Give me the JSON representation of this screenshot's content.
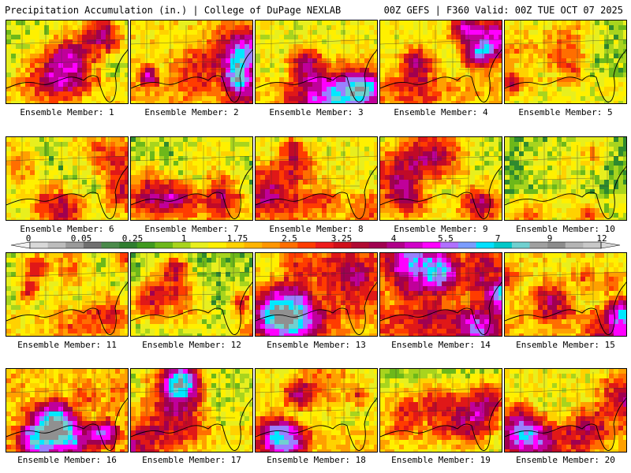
{
  "header": {
    "title_left": "Precipitation Accumulation (in.) | College of DuPage NEXLAB",
    "title_right": "00Z GEFS | F360 Valid: 00Z TUE OCT 07 2025"
  },
  "colorbar": {
    "tick_labels": [
      "0",
      "0.05",
      "0.25",
      "1",
      "1.75",
      "2.5",
      "3.25",
      "4",
      "5.5",
      "7",
      "9",
      "12"
    ],
    "colors": [
      "#d8d8d8",
      "#bcbcbc",
      "#9a9a9a",
      "#707070",
      "#4a8a4a",
      "#2f7d2f",
      "#3f9a1f",
      "#6db81a",
      "#a8d41e",
      "#e8ef1e",
      "#fff000",
      "#ffd200",
      "#ffb400",
      "#ff9600",
      "#ff6e00",
      "#ff3c00",
      "#ee1c1c",
      "#d0101a",
      "#b00a32",
      "#a00050",
      "#b0008a",
      "#d000c8",
      "#ff00ff",
      "#b070ff",
      "#7a9cff",
      "#00e0ff",
      "#00c8c8",
      "#70d0d0",
      "#a0a0a0",
      "#8c8c8c",
      "#b4b4b4",
      "#c8c8c8"
    ]
  },
  "panels": [
    {
      "label": "Ensemble Member: 1",
      "seed": 11,
      "bias": 1.2
    },
    {
      "label": "Ensemble Member: 2",
      "seed": 23,
      "bias": 2.0
    },
    {
      "label": "Ensemble Member: 3",
      "seed": 37,
      "bias": 1.6
    },
    {
      "label": "Ensemble Member: 4",
      "seed": 41,
      "bias": 1.8
    },
    {
      "label": "Ensemble Member: 5",
      "seed": 53,
      "bias": 0.9
    },
    {
      "label": "Ensemble Member: 6",
      "seed": 61,
      "bias": 0.8
    },
    {
      "label": "Ensemble Member: 7",
      "seed": 73,
      "bias": 0.8
    },
    {
      "label": "Ensemble Member: 8",
      "seed": 83,
      "bias": 1.7
    },
    {
      "label": "Ensemble Member: 9",
      "seed": 97,
      "bias": 1.1
    },
    {
      "label": "Ensemble Member: 10",
      "seed": 101,
      "bias": 0.5
    },
    {
      "label": "Ensemble Member: 11",
      "seed": 113,
      "bias": 1.3
    },
    {
      "label": "Ensemble Member: 12",
      "seed": 127,
      "bias": 0.6
    },
    {
      "label": "Ensemble Member: 13",
      "seed": 131,
      "bias": 2.1
    },
    {
      "label": "Ensemble Member: 14",
      "seed": 149,
      "bias": 3.2
    },
    {
      "label": "Ensemble Member: 15",
      "seed": 151,
      "bias": 2.0
    },
    {
      "label": "Ensemble Member: 16",
      "seed": 163,
      "bias": 2.4
    },
    {
      "label": "Ensemble Member: 17",
      "seed": 173,
      "bias": 1.1
    },
    {
      "label": "Ensemble Member: 18",
      "seed": 181,
      "bias": 1.6
    },
    {
      "label": "Ensemble Member: 19",
      "seed": 191,
      "bias": 1.0
    },
    {
      "label": "Ensemble Member: 20",
      "seed": 199,
      "bias": 1.7
    }
  ]
}
